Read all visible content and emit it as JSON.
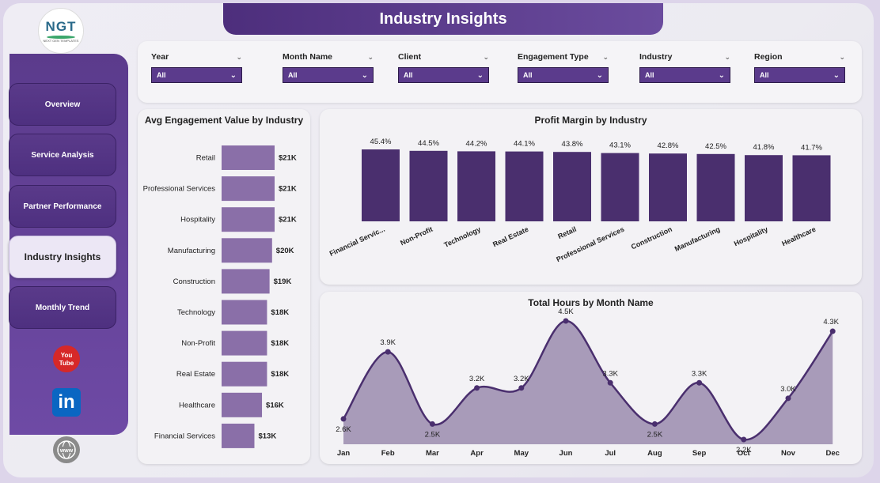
{
  "header": {
    "title": "Industry Insights"
  },
  "logo": {
    "text": "NGT",
    "subtext": "NEXT GEN TEMPLATES"
  },
  "sidebar": {
    "items": [
      {
        "label": "Overview",
        "active": false
      },
      {
        "label": "Service Analysis",
        "active": false
      },
      {
        "label": "Partner Performance",
        "active": false
      },
      {
        "label": "Industry Insights",
        "active": true
      },
      {
        "label": "Monthly Trend",
        "active": false
      }
    ],
    "social": [
      {
        "icon": "youtube-icon",
        "text": "You Tube"
      },
      {
        "icon": "linkedin-icon",
        "text": "in"
      },
      {
        "icon": "web-icon",
        "text": "www"
      }
    ]
  },
  "filters": [
    {
      "label": "Year",
      "value": "All"
    },
    {
      "label": "Month Name",
      "value": "All"
    },
    {
      "label": "Client",
      "value": "All"
    },
    {
      "label": "Engagement Type",
      "value": "All"
    },
    {
      "label": "Industry",
      "value": "All"
    },
    {
      "label": "Region",
      "value": "All"
    }
  ],
  "colors": {
    "accent": "#5b3b8c",
    "bar_dark": "#4a2f6e",
    "bar_light": "#8a6fa8",
    "area_fill": "#a89bb9",
    "line": "#4a2f6e"
  },
  "chart_data": [
    {
      "type": "bar",
      "orientation": "horizontal",
      "title": "Avg Engagement Value by Industry",
      "categories": [
        "Retail",
        "Professional Services",
        "Hospitality",
        "Manufacturing",
        "Construction",
        "Technology",
        "Non-Profit",
        "Real Estate",
        "Healthcare",
        "Financial Services"
      ],
      "values": [
        21,
        21,
        21,
        20,
        19,
        18,
        18,
        18,
        16,
        13
      ],
      "labels": [
        "$21K",
        "$21K",
        "$21K",
        "$20K",
        "$19K",
        "$18K",
        "$18K",
        "$18K",
        "$16K",
        "$13K"
      ],
      "grid": false
    },
    {
      "type": "bar",
      "title": "Profit Margin by Industry",
      "categories": [
        "Financial Servic...",
        "Non-Profit",
        "Technology",
        "Real Estate",
        "Retail",
        "Professional Services",
        "Construction",
        "Manufacturing",
        "Hospitality",
        "Healthcare"
      ],
      "values": [
        45.4,
        44.5,
        44.2,
        44.1,
        43.8,
        43.1,
        42.8,
        42.5,
        41.8,
        41.7
      ],
      "labels": [
        "45.4%",
        "44.5%",
        "44.2%",
        "44.1%",
        "43.8%",
        "43.1%",
        "42.8%",
        "42.5%",
        "41.8%",
        "41.7%"
      ],
      "grid": false
    },
    {
      "type": "area",
      "title": "Total Hours by Month Name",
      "categories": [
        "Jan",
        "Feb",
        "Mar",
        "Apr",
        "May",
        "Jun",
        "Jul",
        "Aug",
        "Sep",
        "Oct",
        "Nov",
        "Dec"
      ],
      "values": [
        2.6,
        3.9,
        2.5,
        3.2,
        3.2,
        4.5,
        3.3,
        2.5,
        3.3,
        2.2,
        3.0,
        4.3
      ],
      "labels": [
        "2.6K",
        "3.9K",
        "2.5K",
        "3.2K",
        "3.2K",
        "4.5K",
        "3.3K",
        "2.5K",
        "3.3K",
        "2.2K",
        "3.0K",
        "4.3K"
      ],
      "grid": false
    }
  ]
}
